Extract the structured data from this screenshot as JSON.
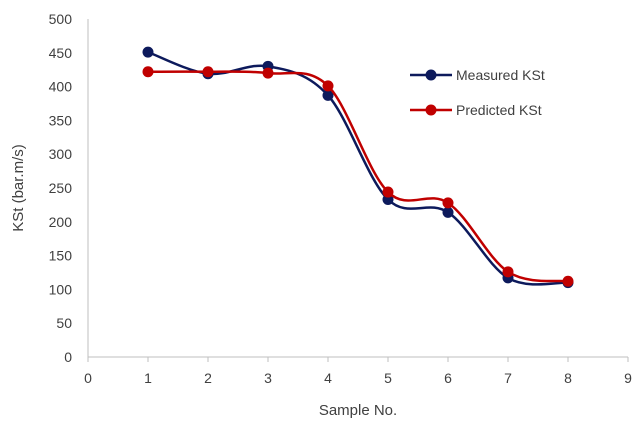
{
  "chart_data": {
    "type": "line",
    "title": "",
    "xlabel": "Sample No.",
    "ylabel": "KSt (bar.m/s)",
    "xlim": [
      0,
      9
    ],
    "ylim": [
      0,
      500
    ],
    "x_ticks": [
      "0",
      "1",
      "2",
      "3",
      "4",
      "5",
      "6",
      "7",
      "8",
      "9"
    ],
    "y_ticks": [
      "0",
      "50",
      "100",
      "150",
      "200",
      "250",
      "300",
      "350",
      "400",
      "450",
      "500"
    ],
    "x": [
      1,
      2,
      3,
      4,
      5,
      6,
      7,
      8
    ],
    "series": [
      {
        "name": "Measured KSt",
        "color": "#0d1a5c",
        "values": [
          451,
          419,
          430,
          387,
          233,
          214,
          117,
          110
        ]
      },
      {
        "name": "Predicted KSt",
        "color": "#c00000",
        "values": [
          422,
          422,
          420,
          401,
          244,
          228,
          126,
          112
        ]
      }
    ],
    "smooth": true,
    "grid": false,
    "legend_position": "top-right"
  }
}
